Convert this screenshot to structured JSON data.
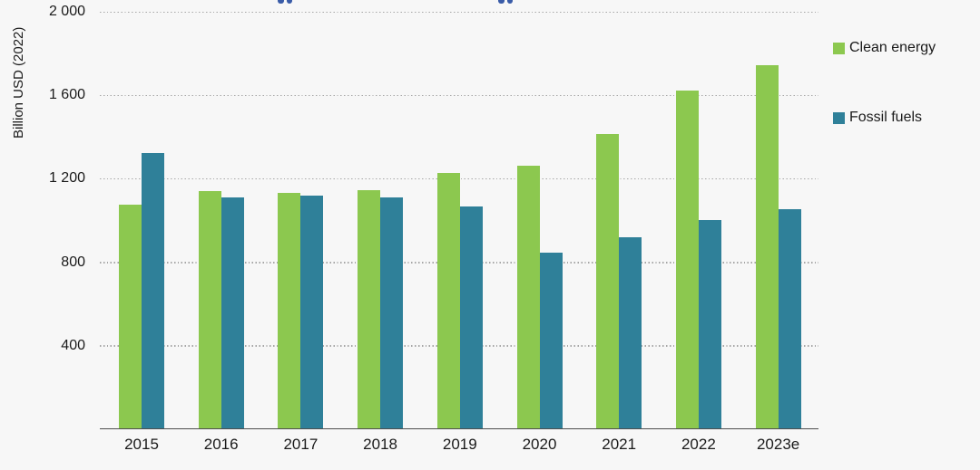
{
  "figure": {
    "background_color": "#f7f7f7",
    "gridline_color": "#a6a6a6",
    "axis_line_color": "#4d4d4d",
    "text_color": "#1a1a1a",
    "clipped_title_fragment_color": "#3a5ca8",
    "legend": [
      {
        "label": "Clean energy",
        "color": "#8cc84f"
      },
      {
        "label": "Fossil fuels",
        "color": "#2f8099"
      }
    ]
  },
  "chart_data": {
    "type": "bar",
    "title": "",
    "xlabel": "",
    "ylabel": "Billion USD (2022)",
    "ylim": [
      0,
      2000
    ],
    "grid": "horizontal dotted",
    "legend_position": "right",
    "categories": [
      "2015",
      "2016",
      "2017",
      "2018",
      "2019",
      "2020",
      "2021",
      "2022",
      "2023e"
    ],
    "series": [
      {
        "name": "Clean energy",
        "color": "#8cc84f",
        "values": [
          1070,
          1135,
          1130,
          1140,
          1225,
          1260,
          1410,
          1620,
          1740
        ]
      },
      {
        "name": "Fossil fuels",
        "color": "#2f8099",
        "values": [
          1320,
          1105,
          1115,
          1105,
          1065,
          840,
          915,
          1000,
          1050
        ]
      }
    ],
    "yticks": {
      "values": [
        2000,
        1600,
        1200,
        800,
        400
      ],
      "labels": [
        "2 000",
        "1 600",
        "1 200",
        "800",
        "400"
      ]
    }
  }
}
